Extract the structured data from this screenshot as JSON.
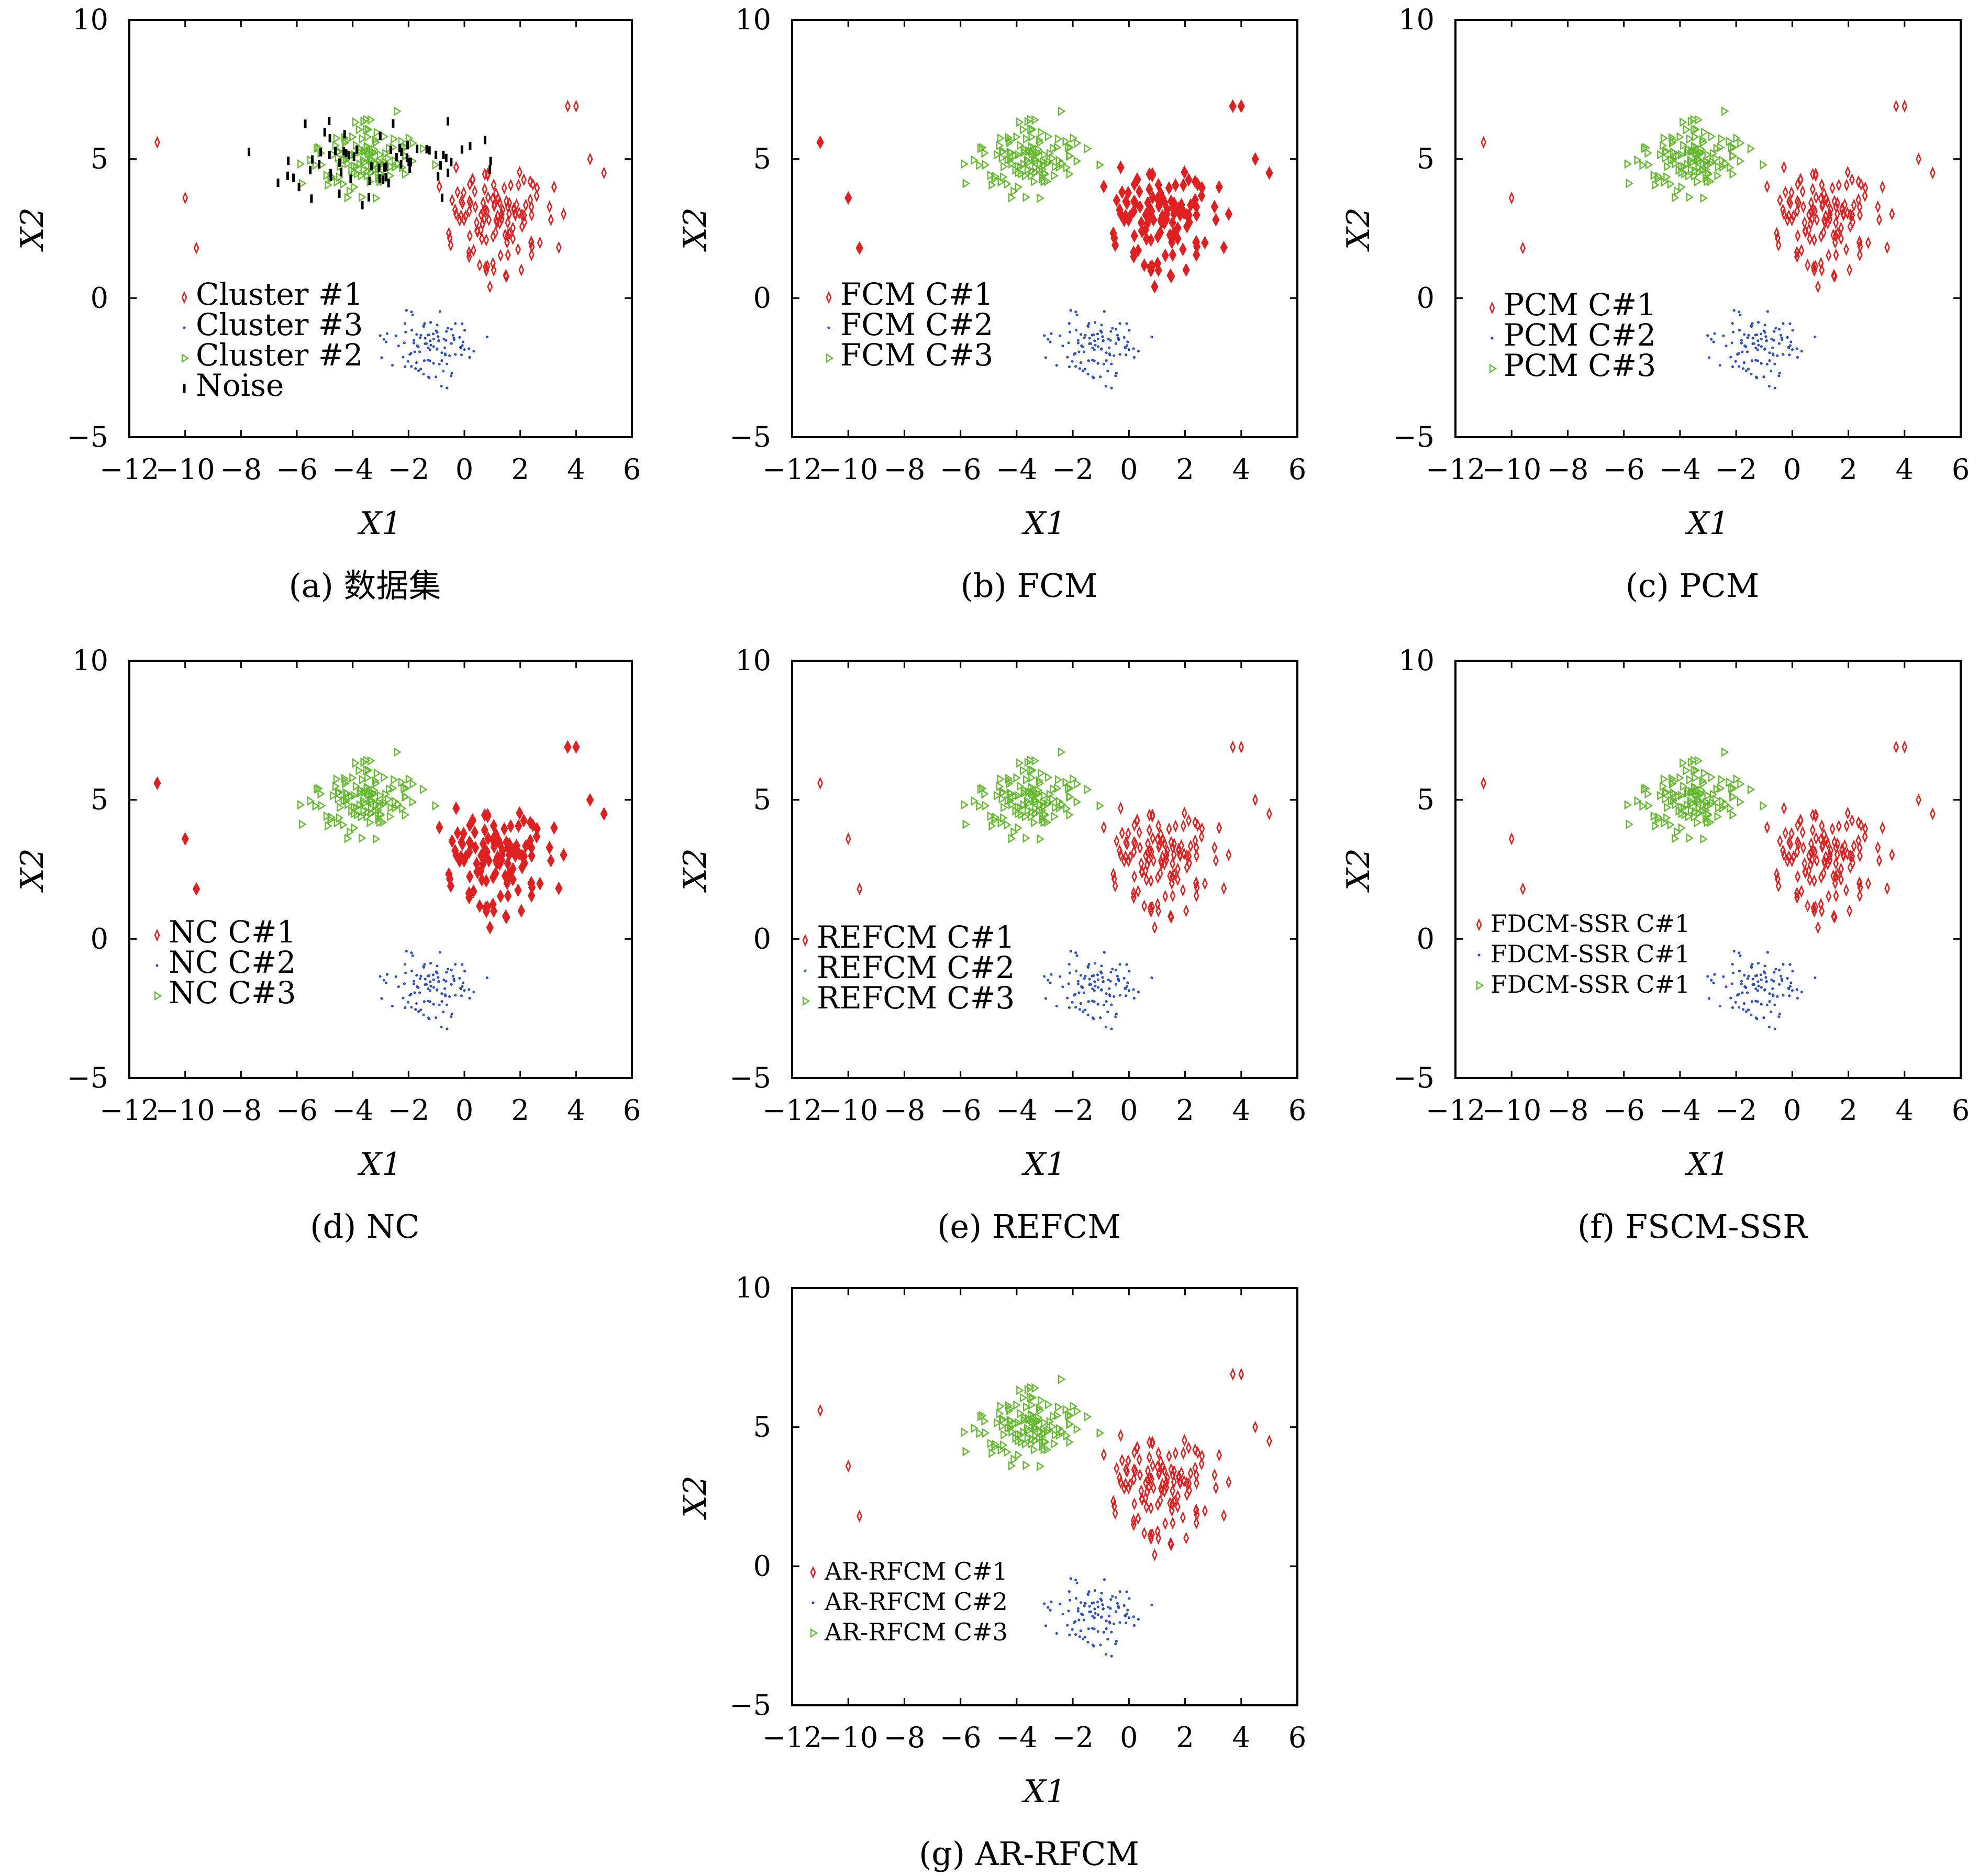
{
  "chart_data": [
    {
      "type": "scatter",
      "caption": "(a) 数据集",
      "xlabel": "X1",
      "ylabel": "X2",
      "xlim": [
        -12,
        6
      ],
      "ylim": [
        -5,
        10
      ],
      "xticks": [
        "−12",
        "−10",
        "−8",
        "−6",
        "−4",
        "−2",
        "0",
        "2",
        "4",
        "6"
      ],
      "yticks": [
        "−5",
        "0",
        "5",
        "10"
      ],
      "legend_placement": "lower-left",
      "series": [
        {
          "name": "Cluster #1",
          "color": "#e02020",
          "marker": "diamond"
        },
        {
          "name": "Cluster #3",
          "color": "#3050c0",
          "marker": "dot"
        },
        {
          "name": "Cluster #2",
          "color": "#66bb33",
          "marker": "triangle"
        },
        {
          "name": "Noise",
          "color": "#000000",
          "marker": "bar"
        }
      ]
    },
    {
      "type": "scatter",
      "caption": "(b) FCM",
      "xlabel": "X1",
      "ylabel": "X2",
      "xlim": [
        -12,
        6
      ],
      "ylim": [
        -5,
        10
      ],
      "xticks": [
        "−12",
        "−10",
        "−8",
        "−6",
        "−4",
        "−2",
        "0",
        "2",
        "4",
        "6"
      ],
      "yticks": [
        "−5",
        "0",
        "5",
        "10"
      ],
      "legend_placement": "lower-left",
      "series": [
        {
          "name": "FCM C#1",
          "color": "#e02020",
          "marker": "diamond-bold"
        },
        {
          "name": "FCM C#2",
          "color": "#3050c0",
          "marker": "dot"
        },
        {
          "name": "FCM C#3",
          "color": "#66bb33",
          "marker": "triangle"
        }
      ]
    },
    {
      "type": "scatter",
      "caption": "(c) PCM",
      "xlabel": "X1",
      "ylabel": "X2",
      "xlim": [
        -12,
        6
      ],
      "ylim": [
        -5,
        10
      ],
      "xticks": [
        "−12",
        "−10",
        "−8",
        "−6",
        "−4",
        "−2",
        "0",
        "2",
        "4",
        "6"
      ],
      "yticks": [
        "−5",
        "0",
        "5",
        "10"
      ],
      "legend_placement": "lower-left",
      "series": [
        {
          "name": "PCM C#1",
          "color": "#e02020",
          "marker": "diamond"
        },
        {
          "name": "PCM C#2",
          "color": "#3050c0",
          "marker": "dot"
        },
        {
          "name": "PCM C#3",
          "color": "#66bb33",
          "marker": "triangle"
        }
      ]
    },
    {
      "type": "scatter",
      "caption": "(d) NC",
      "xlabel": "X1",
      "ylabel": "X2",
      "xlim": [
        -12,
        6
      ],
      "ylim": [
        -5,
        10
      ],
      "xticks": [
        "−12",
        "−10",
        "−8",
        "−6",
        "−4",
        "−2",
        "0",
        "2",
        "4",
        "6"
      ],
      "yticks": [
        "−5",
        "0",
        "5",
        "10"
      ],
      "legend_placement": "lower-left",
      "series": [
        {
          "name": "NC C#1",
          "color": "#e02020",
          "marker": "diamond-bold"
        },
        {
          "name": "NC C#2",
          "color": "#3050c0",
          "marker": "dot"
        },
        {
          "name": "NC C#3",
          "color": "#66bb33",
          "marker": "triangle"
        }
      ]
    },
    {
      "type": "scatter",
      "caption": "(e) REFCM",
      "xlabel": "X1",
      "ylabel": "X2",
      "xlim": [
        -12,
        6
      ],
      "ylim": [
        -5,
        10
      ],
      "xticks": [
        "−12",
        "−10",
        "−8",
        "−6",
        "−4",
        "−2",
        "0",
        "2",
        "4",
        "6"
      ],
      "yticks": [
        "−5",
        "0",
        "5",
        "10"
      ],
      "legend_placement": "lower-left",
      "series": [
        {
          "name": "REFCM C#1",
          "color": "#e02020",
          "marker": "diamond"
        },
        {
          "name": "REFCM C#2",
          "color": "#3050c0",
          "marker": "dot"
        },
        {
          "name": "REFCM C#3",
          "color": "#66bb33",
          "marker": "triangle"
        }
      ]
    },
    {
      "type": "scatter",
      "caption": "(f) FSCM-SSR",
      "xlabel": "X1",
      "ylabel": "X2",
      "xlim": [
        -12,
        6
      ],
      "ylim": [
        -5,
        10
      ],
      "xticks": [
        "−12",
        "−10",
        "−8",
        "−6",
        "−4",
        "−2",
        "0",
        "2",
        "4",
        "6"
      ],
      "yticks": [
        "−5",
        "0",
        "5",
        "10"
      ],
      "legend_placement": "lower-left",
      "series": [
        {
          "name": "FDCM-SSR C#1",
          "color": "#e02020",
          "marker": "diamond"
        },
        {
          "name": "FDCM-SSR C#1",
          "color": "#3050c0",
          "marker": "dot"
        },
        {
          "name": "FDCM-SSR C#1",
          "color": "#66bb33",
          "marker": "triangle"
        }
      ]
    },
    {
      "type": "scatter",
      "caption": "(g) AR-RFCM",
      "xlabel": "X1",
      "ylabel": "X2",
      "xlim": [
        -12,
        6
      ],
      "ylim": [
        -5,
        10
      ],
      "xticks": [
        "−12",
        "−10",
        "−8",
        "−6",
        "−4",
        "−2",
        "0",
        "2",
        "4",
        "6"
      ],
      "yticks": [
        "−5",
        "0",
        "5",
        "10"
      ],
      "legend_placement": "lower-left",
      "series": [
        {
          "name": "AR-RFCM C#1",
          "color": "#e02020",
          "marker": "diamond"
        },
        {
          "name": "AR-RFCM C#2",
          "color": "#3050c0",
          "marker": "dot"
        },
        {
          "name": "AR-RFCM C#3",
          "color": "#66bb33",
          "marker": "triangle"
        }
      ]
    }
  ]
}
